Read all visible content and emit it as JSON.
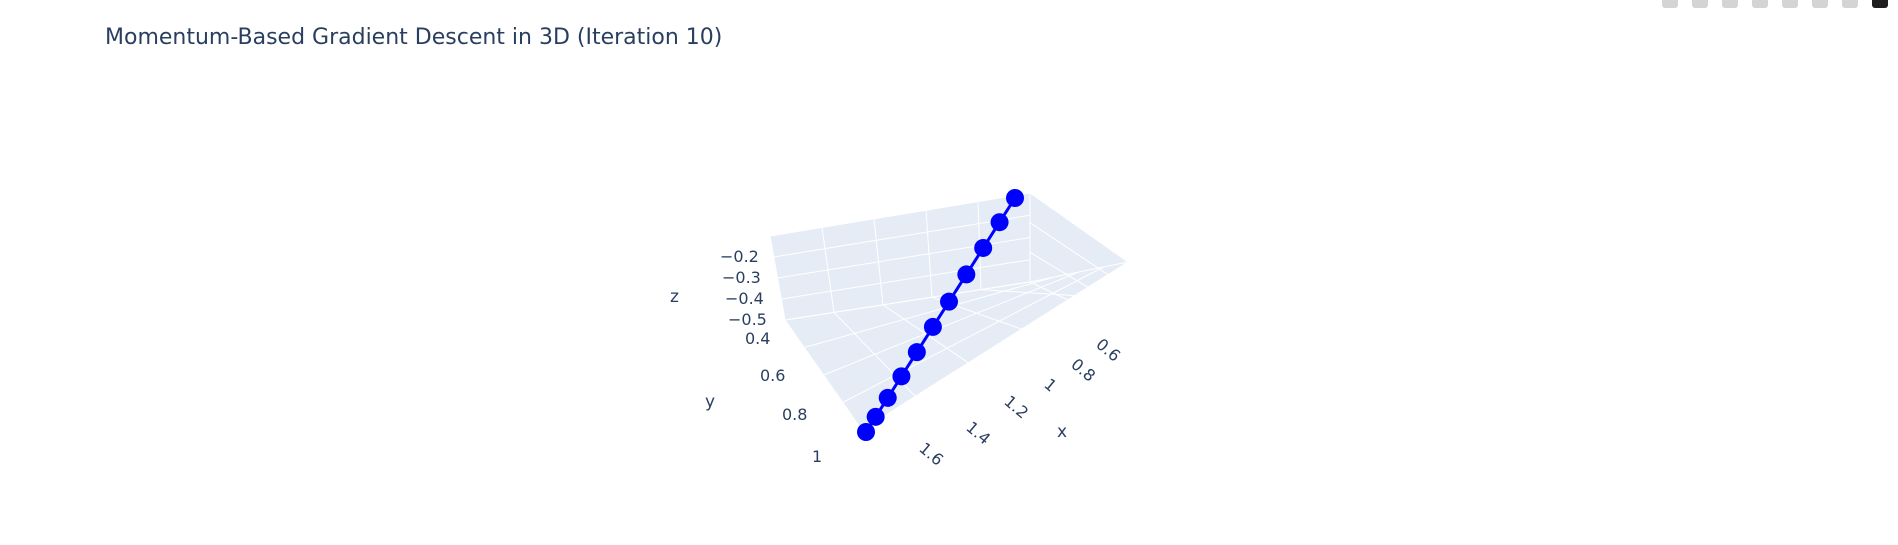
{
  "chart_data": {
    "type": "scatter3d",
    "title": "Momentum-Based Gradient Descent in 3D (Iteration 10)",
    "x_axis": {
      "title": "x",
      "tick_labels": [
        "0.6",
        "0.8",
        "1",
        "1.2",
        "1.4",
        "1.6"
      ]
    },
    "y_axis": {
      "title": "y",
      "tick_labels": [
        "0.4",
        "0.6",
        "0.8",
        "1"
      ]
    },
    "z_axis": {
      "title": "z",
      "tick_labels": [
        "−0.2",
        "−0.3",
        "−0.4",
        "−0.5"
      ]
    },
    "series": [
      {
        "mode": "lines+markers",
        "color": "#0000ff",
        "points": [
          {
            "x": 0.5,
            "y": 0.3,
            "z": -0.15
          },
          {
            "x": 0.58,
            "y": 0.38,
            "z": -0.2
          },
          {
            "x": 0.68,
            "y": 0.46,
            "z": -0.25
          },
          {
            "x": 0.79,
            "y": 0.54,
            "z": -0.3
          },
          {
            "x": 0.91,
            "y": 0.62,
            "z": -0.35
          },
          {
            "x": 1.03,
            "y": 0.7,
            "z": -0.39
          },
          {
            "x": 1.15,
            "y": 0.78,
            "z": -0.43
          },
          {
            "x": 1.27,
            "y": 0.85,
            "z": -0.47
          },
          {
            "x": 1.38,
            "y": 0.92,
            "z": -0.5
          },
          {
            "x": 1.47,
            "y": 0.98,
            "z": -0.53
          },
          {
            "x": 1.55,
            "y": 1.03,
            "z": -0.55
          }
        ]
      }
    ],
    "grid": true,
    "legend": false,
    "colors": {
      "pane": "#e5ecf6",
      "grid": "#ffffff",
      "text": "#2a3f5f",
      "trace": "#0000ff"
    }
  }
}
